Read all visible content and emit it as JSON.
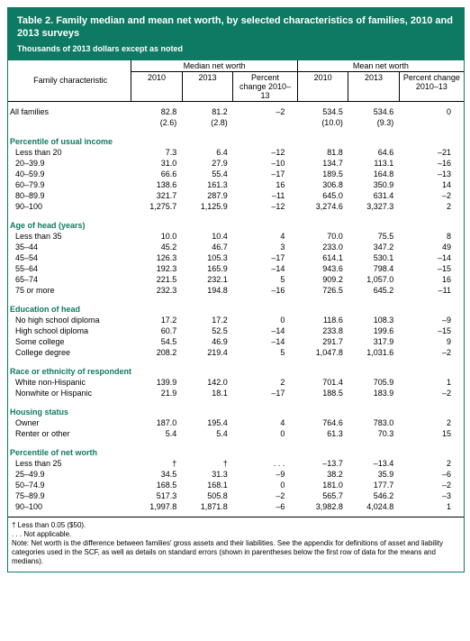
{
  "colors": {
    "brand": "#0e7a63",
    "text": "#000000",
    "bg": "#ffffff"
  },
  "header": {
    "title": "Table 2. Family median and mean net worth, by selected characteristics of families, 2010 and 2013 surveys",
    "subtitle": "Thousands of 2013 dollars except as noted"
  },
  "columns": {
    "family_char": "Family characteristic",
    "median": "Median net worth",
    "mean": "Mean net worth",
    "y2010": "2010",
    "y2013": "2013",
    "pct": "Percent change 2010–13"
  },
  "all_label": "All families",
  "all": {
    "m10": "82.8",
    "m13": "81.2",
    "mpc": "–2",
    "n10": "534.5",
    "n13": "534.6",
    "npc": "0"
  },
  "all_se": {
    "m10": "(2.6)",
    "m13": "(2.8)",
    "mpc": "",
    "n10": "(10.0)",
    "n13": "(9.3)",
    "npc": ""
  },
  "sections": [
    {
      "title": "Percentile of usual income",
      "rows": [
        {
          "l": "Less than 20",
          "m10": "7.3",
          "m13": "6.4",
          "mpc": "–12",
          "n10": "81.8",
          "n13": "64.6",
          "npc": "–21"
        },
        {
          "l": "20–39.9",
          "m10": "31.0",
          "m13": "27.9",
          "mpc": "–10",
          "n10": "134.7",
          "n13": "113.1",
          "npc": "–16"
        },
        {
          "l": "40–59.9",
          "m10": "66.6",
          "m13": "55.4",
          "mpc": "–17",
          "n10": "189.5",
          "n13": "164.8",
          "npc": "–13"
        },
        {
          "l": "60–79.9",
          "m10": "138.6",
          "m13": "161.3",
          "mpc": "16",
          "n10": "306.8",
          "n13": "350.9",
          "npc": "14"
        },
        {
          "l": "80–89.9",
          "m10": "321.7",
          "m13": "287.9",
          "mpc": "–11",
          "n10": "645.0",
          "n13": "631.4",
          "npc": "–2"
        },
        {
          "l": "90–100",
          "m10": "1,275.7",
          "m13": "1,125.9",
          "mpc": "–12",
          "n10": "3,274.6",
          "n13": "3,327.3",
          "npc": "2"
        }
      ]
    },
    {
      "title": "Age of head (years)",
      "rows": [
        {
          "l": "Less than 35",
          "m10": "10.0",
          "m13": "10.4",
          "mpc": "4",
          "n10": "70.0",
          "n13": "75.5",
          "npc": "8"
        },
        {
          "l": "35–44",
          "m10": "45.2",
          "m13": "46.7",
          "mpc": "3",
          "n10": "233.0",
          "n13": "347.2",
          "npc": "49"
        },
        {
          "l": "45–54",
          "m10": "126.3",
          "m13": "105.3",
          "mpc": "–17",
          "n10": "614.1",
          "n13": "530.1",
          "npc": "–14"
        },
        {
          "l": "55–64",
          "m10": "192.3",
          "m13": "165.9",
          "mpc": "–14",
          "n10": "943.6",
          "n13": "798.4",
          "npc": "–15"
        },
        {
          "l": "65–74",
          "m10": "221.5",
          "m13": "232.1",
          "mpc": "5",
          "n10": "909.2",
          "n13": "1,057.0",
          "npc": "16"
        },
        {
          "l": "75 or more",
          "m10": "232.3",
          "m13": "194.8",
          "mpc": "–16",
          "n10": "726.5",
          "n13": "645.2",
          "npc": "–11"
        }
      ]
    },
    {
      "title": "Education of head",
      "rows": [
        {
          "l": "No high school diploma",
          "m10": "17.2",
          "m13": "17.2",
          "mpc": "0",
          "n10": "118.6",
          "n13": "108.3",
          "npc": "–9"
        },
        {
          "l": "High school diploma",
          "m10": "60.7",
          "m13": "52.5",
          "mpc": "–14",
          "n10": "233.8",
          "n13": "199.6",
          "npc": "–15"
        },
        {
          "l": "Some college",
          "m10": "54.5",
          "m13": "46.9",
          "mpc": "–14",
          "n10": "291.7",
          "n13": "317.9",
          "npc": "9"
        },
        {
          "l": "College degree",
          "m10": "208.2",
          "m13": "219.4",
          "mpc": "5",
          "n10": "1,047.8",
          "n13": "1,031.6",
          "npc": "–2"
        }
      ]
    },
    {
      "title": "Race or ethnicity of respondent",
      "rows": [
        {
          "l": "White non-Hispanic",
          "m10": "139.9",
          "m13": "142.0",
          "mpc": "2",
          "n10": "701.4",
          "n13": "705.9",
          "npc": "1"
        },
        {
          "l": "Nonwhite or Hispanic",
          "m10": "21.9",
          "m13": "18.1",
          "mpc": "–17",
          "n10": "188.5",
          "n13": "183.9",
          "npc": "–2"
        }
      ]
    },
    {
      "title": "Housing status",
      "rows": [
        {
          "l": "Owner",
          "m10": "187.0",
          "m13": "195.4",
          "mpc": "4",
          "n10": "764.6",
          "n13": "783.0",
          "npc": "2"
        },
        {
          "l": "Renter or other",
          "m10": "5.4",
          "m13": "5.4",
          "mpc": "0",
          "n10": "61.3",
          "n13": "70.3",
          "npc": "15"
        }
      ]
    },
    {
      "title": "Percentile of net worth",
      "rows": [
        {
          "l": "Less than 25",
          "m10": "†",
          "m13": "†",
          "mpc": ". . .",
          "n10": "–13.7",
          "n13": "–13.4",
          "npc": "2"
        },
        {
          "l": "25–49.9",
          "m10": "34.5",
          "m13": "31.3",
          "mpc": "–9",
          "n10": "38.2",
          "n13": "35.9",
          "npc": "–6"
        },
        {
          "l": "50–74.9",
          "m10": "168.5",
          "m13": "168.1",
          "mpc": "0",
          "n10": "181.0",
          "n13": "177.7",
          "npc": "–2"
        },
        {
          "l": "75–89.9",
          "m10": "517.3",
          "m13": "505.8",
          "mpc": "–2",
          "n10": "565.7",
          "n13": "546.2",
          "npc": "–3"
        },
        {
          "l": "90–100",
          "m10": "1,997.8",
          "m13": "1,871.8",
          "mpc": "–6",
          "n10": "3,982.8",
          "n13": "4,024.8",
          "npc": "1"
        }
      ]
    }
  ],
  "footnotes": [
    "† Less than 0.05 ($50).",
    ". . . Not applicable.",
    "Note: Net worth is the difference between families' gross assets and their liabilities. See the appendix for definitions of asset and liability categories used in the SCF, as well as details on standard errors (shown in parentheses below the first row of data for the means and medians)."
  ]
}
